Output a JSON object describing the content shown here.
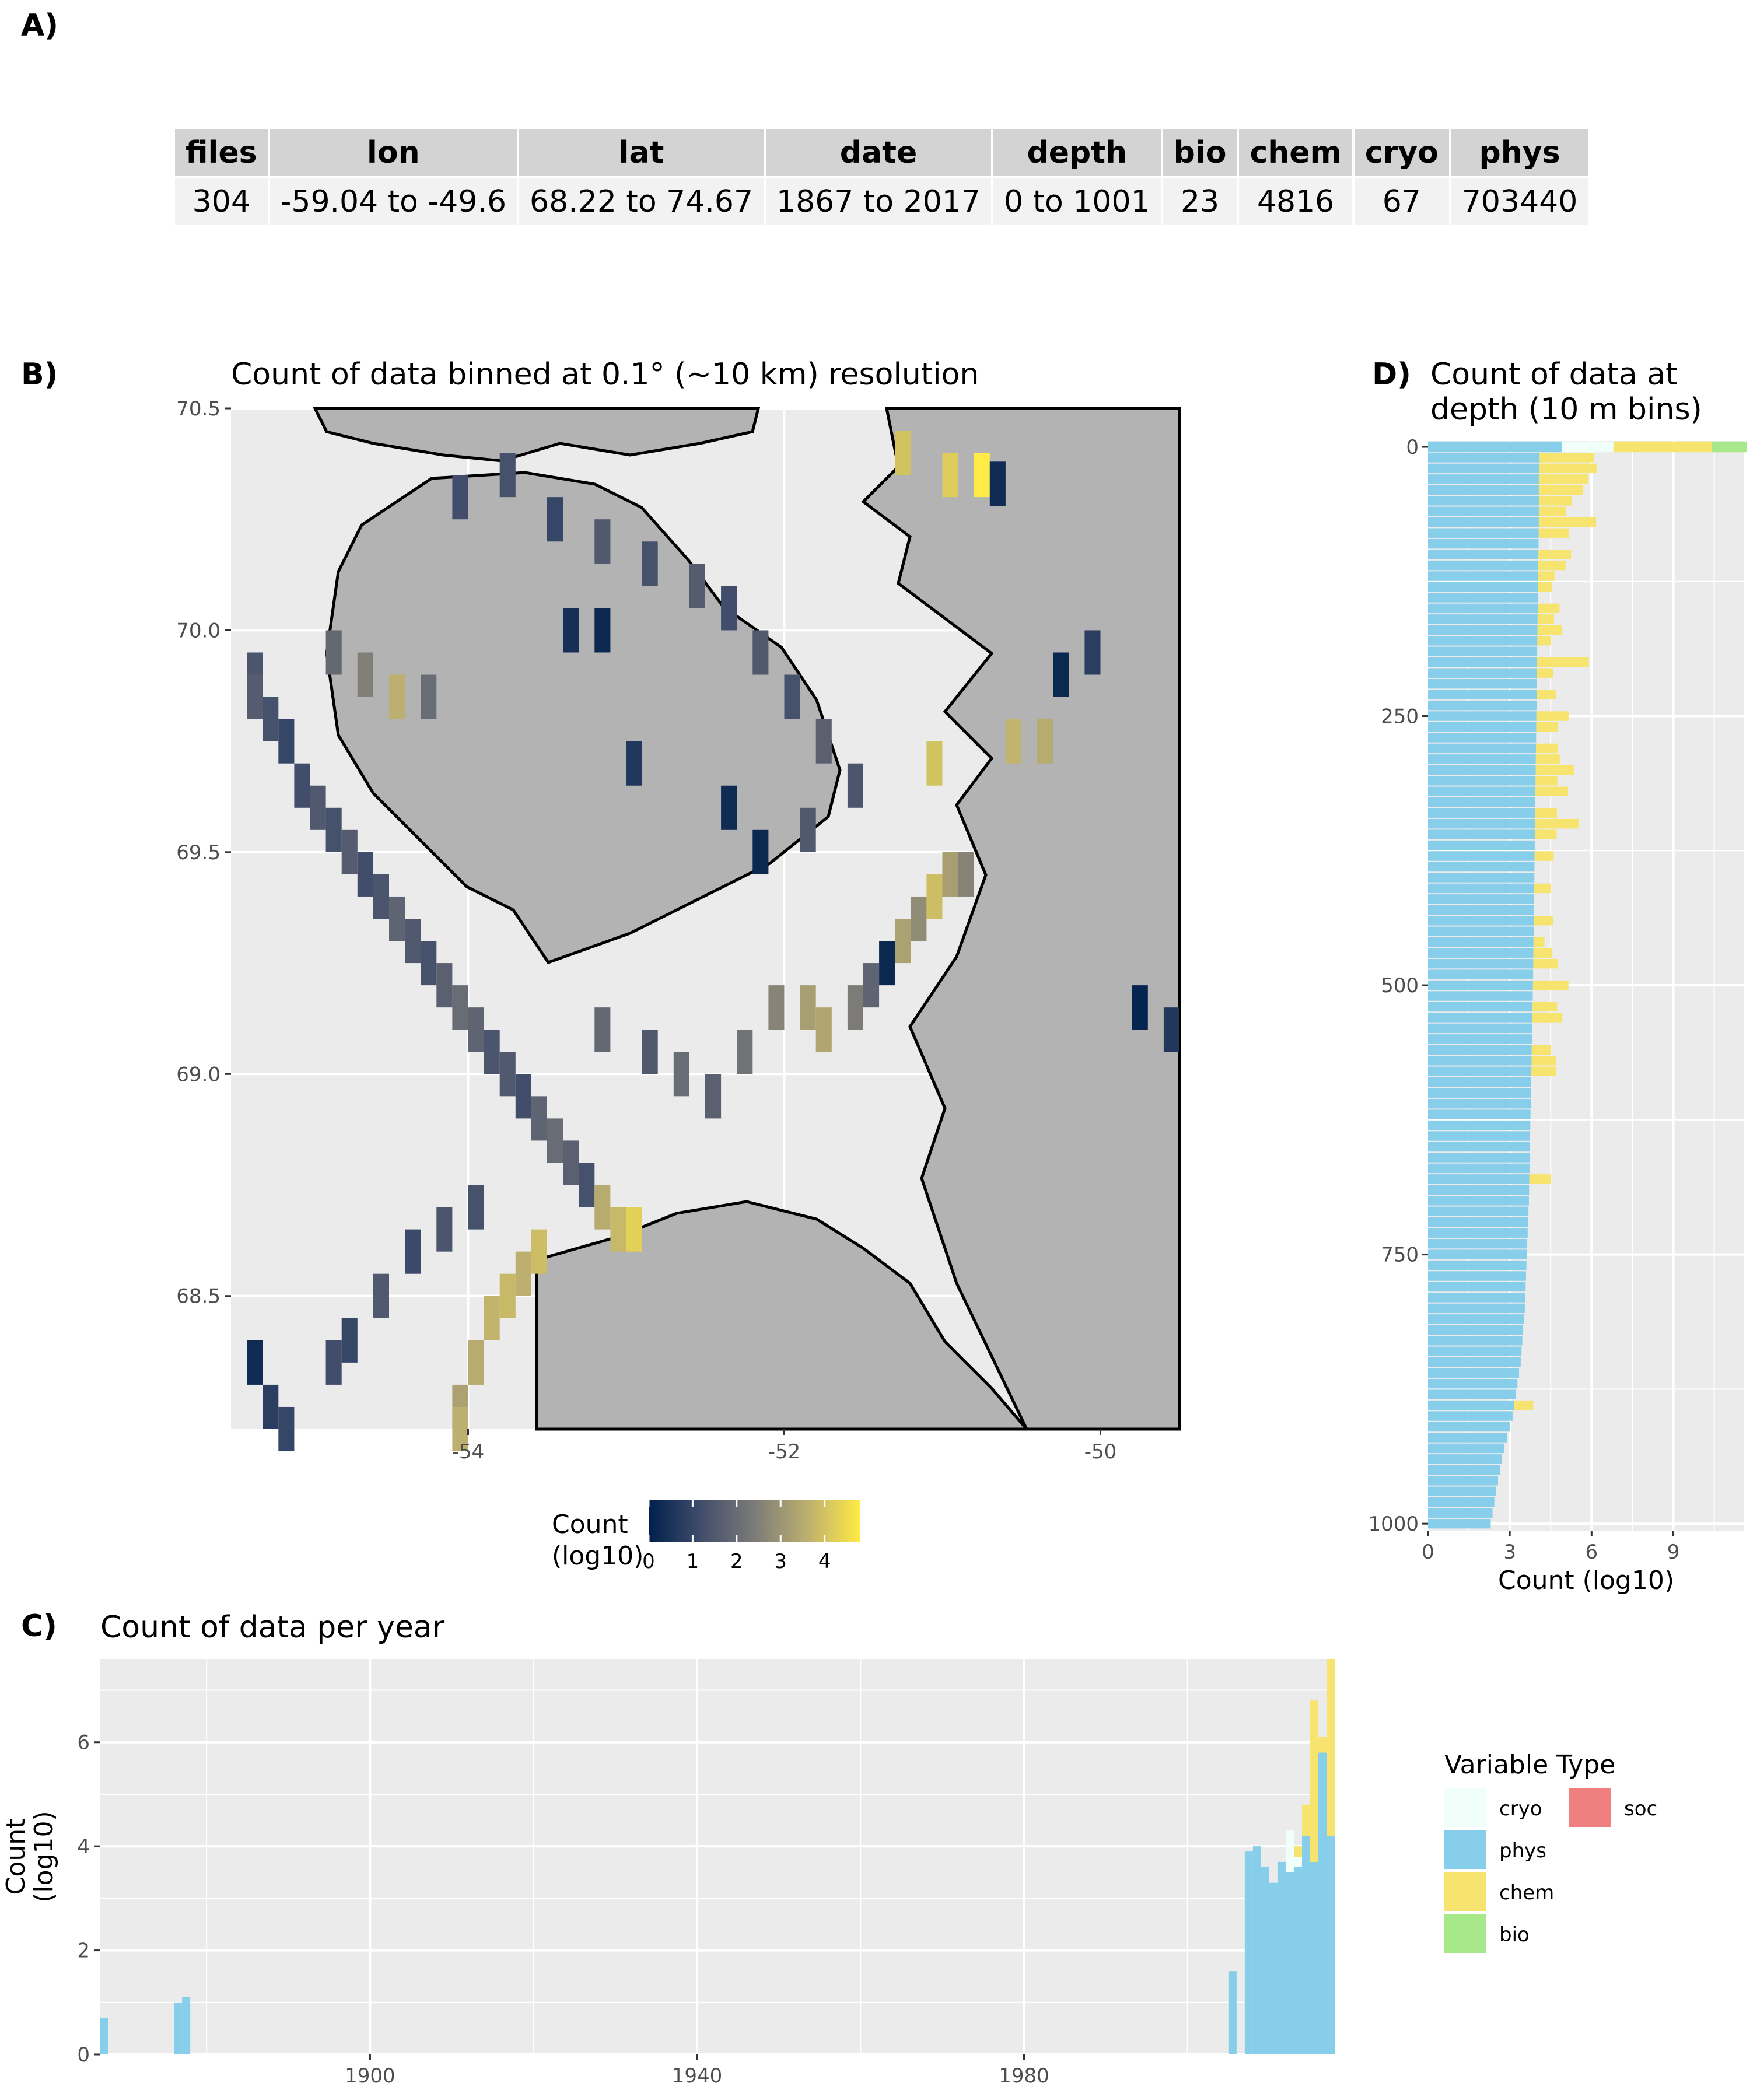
{
  "panels": {
    "a": {
      "letter": "A)"
    },
    "b": {
      "letter": "B)",
      "title": "Count of data binned at 0.1° (~10 km) resolution"
    },
    "c": {
      "letter": "C)",
      "title": "Count of data per year"
    },
    "d": {
      "letter": "D)",
      "title_line1": "Count of data at",
      "title_line2": "depth (10 m bins)"
    }
  },
  "summary_table": {
    "headers": [
      "files",
      "lon",
      "lat",
      "date",
      "depth",
      "bio",
      "chem",
      "cryo",
      "phys"
    ],
    "row": [
      "304",
      "-59.04 to -49.6",
      "68.22 to 74.67",
      "1867 to 2017",
      "0 to 1001",
      "23",
      "4816",
      "67",
      "703440"
    ]
  },
  "colors": {
    "panel_bg": "#ebebeb",
    "grid": "#ffffff",
    "land": "#b3b3b3",
    "cryo": "#f0fffa",
    "phys": "#87ceeb",
    "chem": "#f6e46f",
    "bio": "#a6e88a",
    "soc": "#f08080"
  },
  "chart_data": [
    {
      "id": "map",
      "type": "heatmap",
      "title": "Count of data binned at 0.1° (~10 km) resolution",
      "xlim": [
        -55.5,
        -49.5
      ],
      "ylim": [
        68.2,
        70.5
      ],
      "x_ticks": [
        -54,
        -52,
        -50
      ],
      "x_tick_labels": [
        "-54",
        "-52",
        "-50"
      ],
      "y_ticks": [
        68.5,
        69.0,
        69.5,
        70.0,
        70.5
      ],
      "y_tick_labels": [
        "68.5",
        "69.0",
        "69.5",
        "70.0",
        "70.5"
      ],
      "legend_title": "Count\n(log10)",
      "legend_title_line1": "Count",
      "legend_title_line2": "(log10)",
      "legend_ticks": [
        0,
        1,
        2,
        3,
        4
      ],
      "legend_range": [
        0,
        4.8
      ],
      "legend_placement": "bottom",
      "bin_size_deg": 0.1,
      "cells": [
        [
          -55.4,
          69.95,
          1.4
        ],
        [
          -55.4,
          69.9,
          1.6
        ],
        [
          -55.3,
          69.85,
          1.3
        ],
        [
          -55.2,
          69.8,
          1.0
        ],
        [
          -55.1,
          69.7,
          1.2
        ],
        [
          -55.0,
          69.65,
          1.5
        ],
        [
          -54.9,
          69.6,
          1.3
        ],
        [
          -54.8,
          69.55,
          1.6
        ],
        [
          -54.7,
          69.5,
          1.2
        ],
        [
          -54.6,
          69.45,
          1.4
        ],
        [
          -54.5,
          69.4,
          1.8
        ],
        [
          -54.4,
          69.35,
          1.5
        ],
        [
          -54.3,
          69.3,
          1.3
        ],
        [
          -54.2,
          69.25,
          1.7
        ],
        [
          -54.1,
          69.2,
          2.0
        ],
        [
          -54.0,
          69.15,
          1.8
        ],
        [
          -53.9,
          69.1,
          1.4
        ],
        [
          -53.8,
          69.05,
          1.5
        ],
        [
          -53.7,
          69.0,
          1.2
        ],
        [
          -53.6,
          68.95,
          1.8
        ],
        [
          -53.5,
          68.9,
          2.0
        ],
        [
          -53.4,
          68.85,
          1.7
        ],
        [
          -53.3,
          68.8,
          1.3
        ],
        [
          -53.2,
          68.75,
          3.5
        ],
        [
          -53.1,
          68.7,
          3.8
        ],
        [
          -53.0,
          68.7,
          4.3
        ],
        [
          -53.6,
          68.65,
          3.9
        ],
        [
          -53.7,
          68.6,
          3.6
        ],
        [
          -53.8,
          68.55,
          3.8
        ],
        [
          -53.9,
          68.5,
          3.7
        ],
        [
          -54.0,
          68.4,
          3.5
        ],
        [
          -54.1,
          68.3,
          3.3
        ],
        [
          -54.1,
          68.25,
          3.6
        ],
        [
          -55.4,
          68.4,
          0.3
        ],
        [
          -55.3,
          68.3,
          0.8
        ],
        [
          -55.2,
          68.25,
          1.0
        ],
        [
          -54.9,
          68.4,
          1.2
        ],
        [
          -54.8,
          68.45,
          1.0
        ],
        [
          -54.6,
          68.55,
          1.5
        ],
        [
          -54.4,
          68.65,
          1.1
        ],
        [
          -54.2,
          68.7,
          1.4
        ],
        [
          -54.0,
          68.75,
          1.3
        ],
        [
          -53.2,
          69.15,
          1.9
        ],
        [
          -52.9,
          69.1,
          1.5
        ],
        [
          -52.7,
          69.05,
          2.0
        ],
        [
          -52.5,
          69.0,
          1.7
        ],
        [
          -52.3,
          69.1,
          2.2
        ],
        [
          -52.1,
          69.2,
          2.6
        ],
        [
          -51.9,
          69.2,
          3.2
        ],
        [
          -51.8,
          69.15,
          3.4
        ],
        [
          -51.6,
          69.2,
          2.4
        ],
        [
          -51.5,
          69.25,
          1.8
        ],
        [
          -51.4,
          69.3,
          0.2
        ],
        [
          -51.3,
          69.35,
          3.3
        ],
        [
          -51.2,
          69.4,
          2.8
        ],
        [
          -51.1,
          69.45,
          3.9
        ],
        [
          -51.0,
          69.5,
          3.2
        ],
        [
          -50.9,
          69.5,
          2.6
        ],
        [
          -51.1,
          69.75,
          4.0
        ],
        [
          -50.6,
          69.8,
          3.7
        ],
        [
          -50.4,
          69.8,
          3.5
        ],
        [
          -50.3,
          69.95,
          0.2
        ],
        [
          -50.1,
          70.0,
          0.8
        ],
        [
          -49.8,
          69.2,
          0.1
        ],
        [
          -49.6,
          69.15,
          0.6
        ],
        [
          -51.3,
          70.45,
          4.0
        ],
        [
          -51.0,
          70.4,
          4.2
        ],
        [
          -50.8,
          70.4,
          4.8
        ],
        [
          -50.7,
          70.38,
          0.3
        ],
        [
          -54.1,
          70.35,
          1.2
        ],
        [
          -53.8,
          70.4,
          1.3
        ],
        [
          -53.5,
          70.3,
          1.0
        ],
        [
          -53.2,
          70.25,
          1.5
        ],
        [
          -52.9,
          70.2,
          1.3
        ],
        [
          -52.6,
          70.15,
          1.6
        ],
        [
          -52.4,
          70.1,
          1.2
        ],
        [
          -52.2,
          70.0,
          1.5
        ],
        [
          -52.0,
          69.9,
          1.3
        ],
        [
          -51.8,
          69.8,
          1.7
        ],
        [
          -51.6,
          69.7,
          1.4
        ],
        [
          -54.9,
          70.0,
          1.9
        ],
        [
          -54.7,
          69.95,
          2.5
        ],
        [
          -54.5,
          69.9,
          3.6
        ],
        [
          -54.3,
          69.9,
          2.0
        ],
        [
          -53.0,
          69.75,
          0.6
        ],
        [
          -52.4,
          69.65,
          0.3
        ],
        [
          -52.2,
          69.55,
          0.2
        ],
        [
          -51.9,
          69.6,
          1.5
        ],
        [
          -53.4,
          70.05,
          0.4
        ],
        [
          -53.2,
          70.05,
          0.2
        ]
      ]
    },
    {
      "id": "depth",
      "type": "bar",
      "orientation": "horizontal",
      "title": "Count of data at depth (10 m bins)",
      "xlabel": "Count (log10)",
      "xlim": [
        0,
        11.6
      ],
      "x_ticks": [
        0,
        3,
        6,
        9
      ],
      "ylim": [
        0,
        1001
      ],
      "y_ticks": [
        0,
        250,
        500,
        750,
        1000
      ],
      "y_reversed": true,
      "bin_m": 10,
      "surface_bin": {
        "depth": 0,
        "phys": 4.9,
        "cryo": 1.9,
        "chem": 3.6,
        "bio": 1.3
      },
      "phys_profile": [
        [
          0,
          4.1
        ],
        [
          100,
          4.05
        ],
        [
          300,
          3.95
        ],
        [
          500,
          3.85
        ],
        [
          700,
          3.7
        ],
        [
          800,
          3.55
        ],
        [
          850,
          3.4
        ],
        [
          900,
          3.1
        ],
        [
          940,
          2.7
        ],
        [
          1000,
          2.3
        ]
      ],
      "chem_values": [
        [
          10,
          2.0
        ],
        [
          20,
          2.1
        ],
        [
          30,
          1.8
        ],
        [
          40,
          1.6
        ],
        [
          50,
          1.2
        ],
        [
          60,
          1.0
        ],
        [
          70,
          2.1
        ],
        [
          80,
          1.1
        ],
        [
          100,
          1.2
        ],
        [
          110,
          1.0
        ],
        [
          120,
          0.6
        ],
        [
          130,
          0.5
        ],
        [
          150,
          0.8
        ],
        [
          160,
          0.6
        ],
        [
          170,
          0.9
        ],
        [
          180,
          0.5
        ],
        [
          200,
          1.9
        ],
        [
          210,
          0.6
        ],
        [
          230,
          0.7
        ],
        [
          250,
          1.2
        ],
        [
          260,
          0.8
        ],
        [
          280,
          0.8
        ],
        [
          290,
          0.9
        ],
        [
          300,
          1.4
        ],
        [
          310,
          0.8
        ],
        [
          320,
          1.2
        ],
        [
          340,
          0.8
        ],
        [
          350,
          1.6
        ],
        [
          360,
          0.8
        ],
        [
          380,
          0.7
        ],
        [
          410,
          0.6
        ],
        [
          440,
          0.7
        ],
        [
          460,
          0.4
        ],
        [
          470,
          0.7
        ],
        [
          480,
          0.9
        ],
        [
          500,
          1.3
        ],
        [
          520,
          0.9
        ],
        [
          530,
          1.1
        ],
        [
          560,
          0.7
        ],
        [
          570,
          0.9
        ],
        [
          580,
          0.9
        ],
        [
          680,
          0.8
        ],
        [
          890,
          0.7
        ]
      ]
    },
    {
      "id": "year",
      "type": "bar",
      "title": "Count of data per year",
      "ylabel": "Count\n(log10)",
      "ylabel_line1": "Count",
      "ylabel_line2": "(log10)",
      "xlim": [
        1867,
        2018
      ],
      "x_ticks": [
        1900,
        1940,
        1980
      ],
      "ylim": [
        0,
        7.6
      ],
      "y_ticks": [
        0,
        2,
        4,
        6
      ],
      "legend_title": "Variable Type",
      "legend_placement": "right",
      "legend_items": [
        "cryo",
        "soc",
        "phys",
        "chem",
        "bio"
      ],
      "series": [
        {
          "name": "phys",
          "points": [
            [
              1867,
              0.7
            ],
            [
              1876,
              1.0
            ],
            [
              1877,
              1.1
            ],
            [
              2005,
              1.6
            ],
            [
              2007,
              3.9
            ],
            [
              2008,
              4.0
            ],
            [
              2009,
              3.6
            ],
            [
              2010,
              3.3
            ],
            [
              2011,
              3.7
            ],
            [
              2012,
              3.5
            ],
            [
              2013,
              3.6
            ],
            [
              2014,
              4.2
            ],
            [
              2015,
              3.7
            ],
            [
              2016,
              5.8
            ],
            [
              2017,
              4.2
            ]
          ]
        },
        {
          "name": "cryo",
          "points": [
            [
              2012,
              4.3
            ],
            [
              2013,
              3.8
            ]
          ]
        },
        {
          "name": "chem",
          "points": [
            [
              2013,
              4.0
            ],
            [
              2014,
              4.8
            ],
            [
              2015,
              6.8
            ],
            [
              2016,
              6.1
            ],
            [
              2017,
              7.6
            ]
          ]
        }
      ]
    }
  ]
}
